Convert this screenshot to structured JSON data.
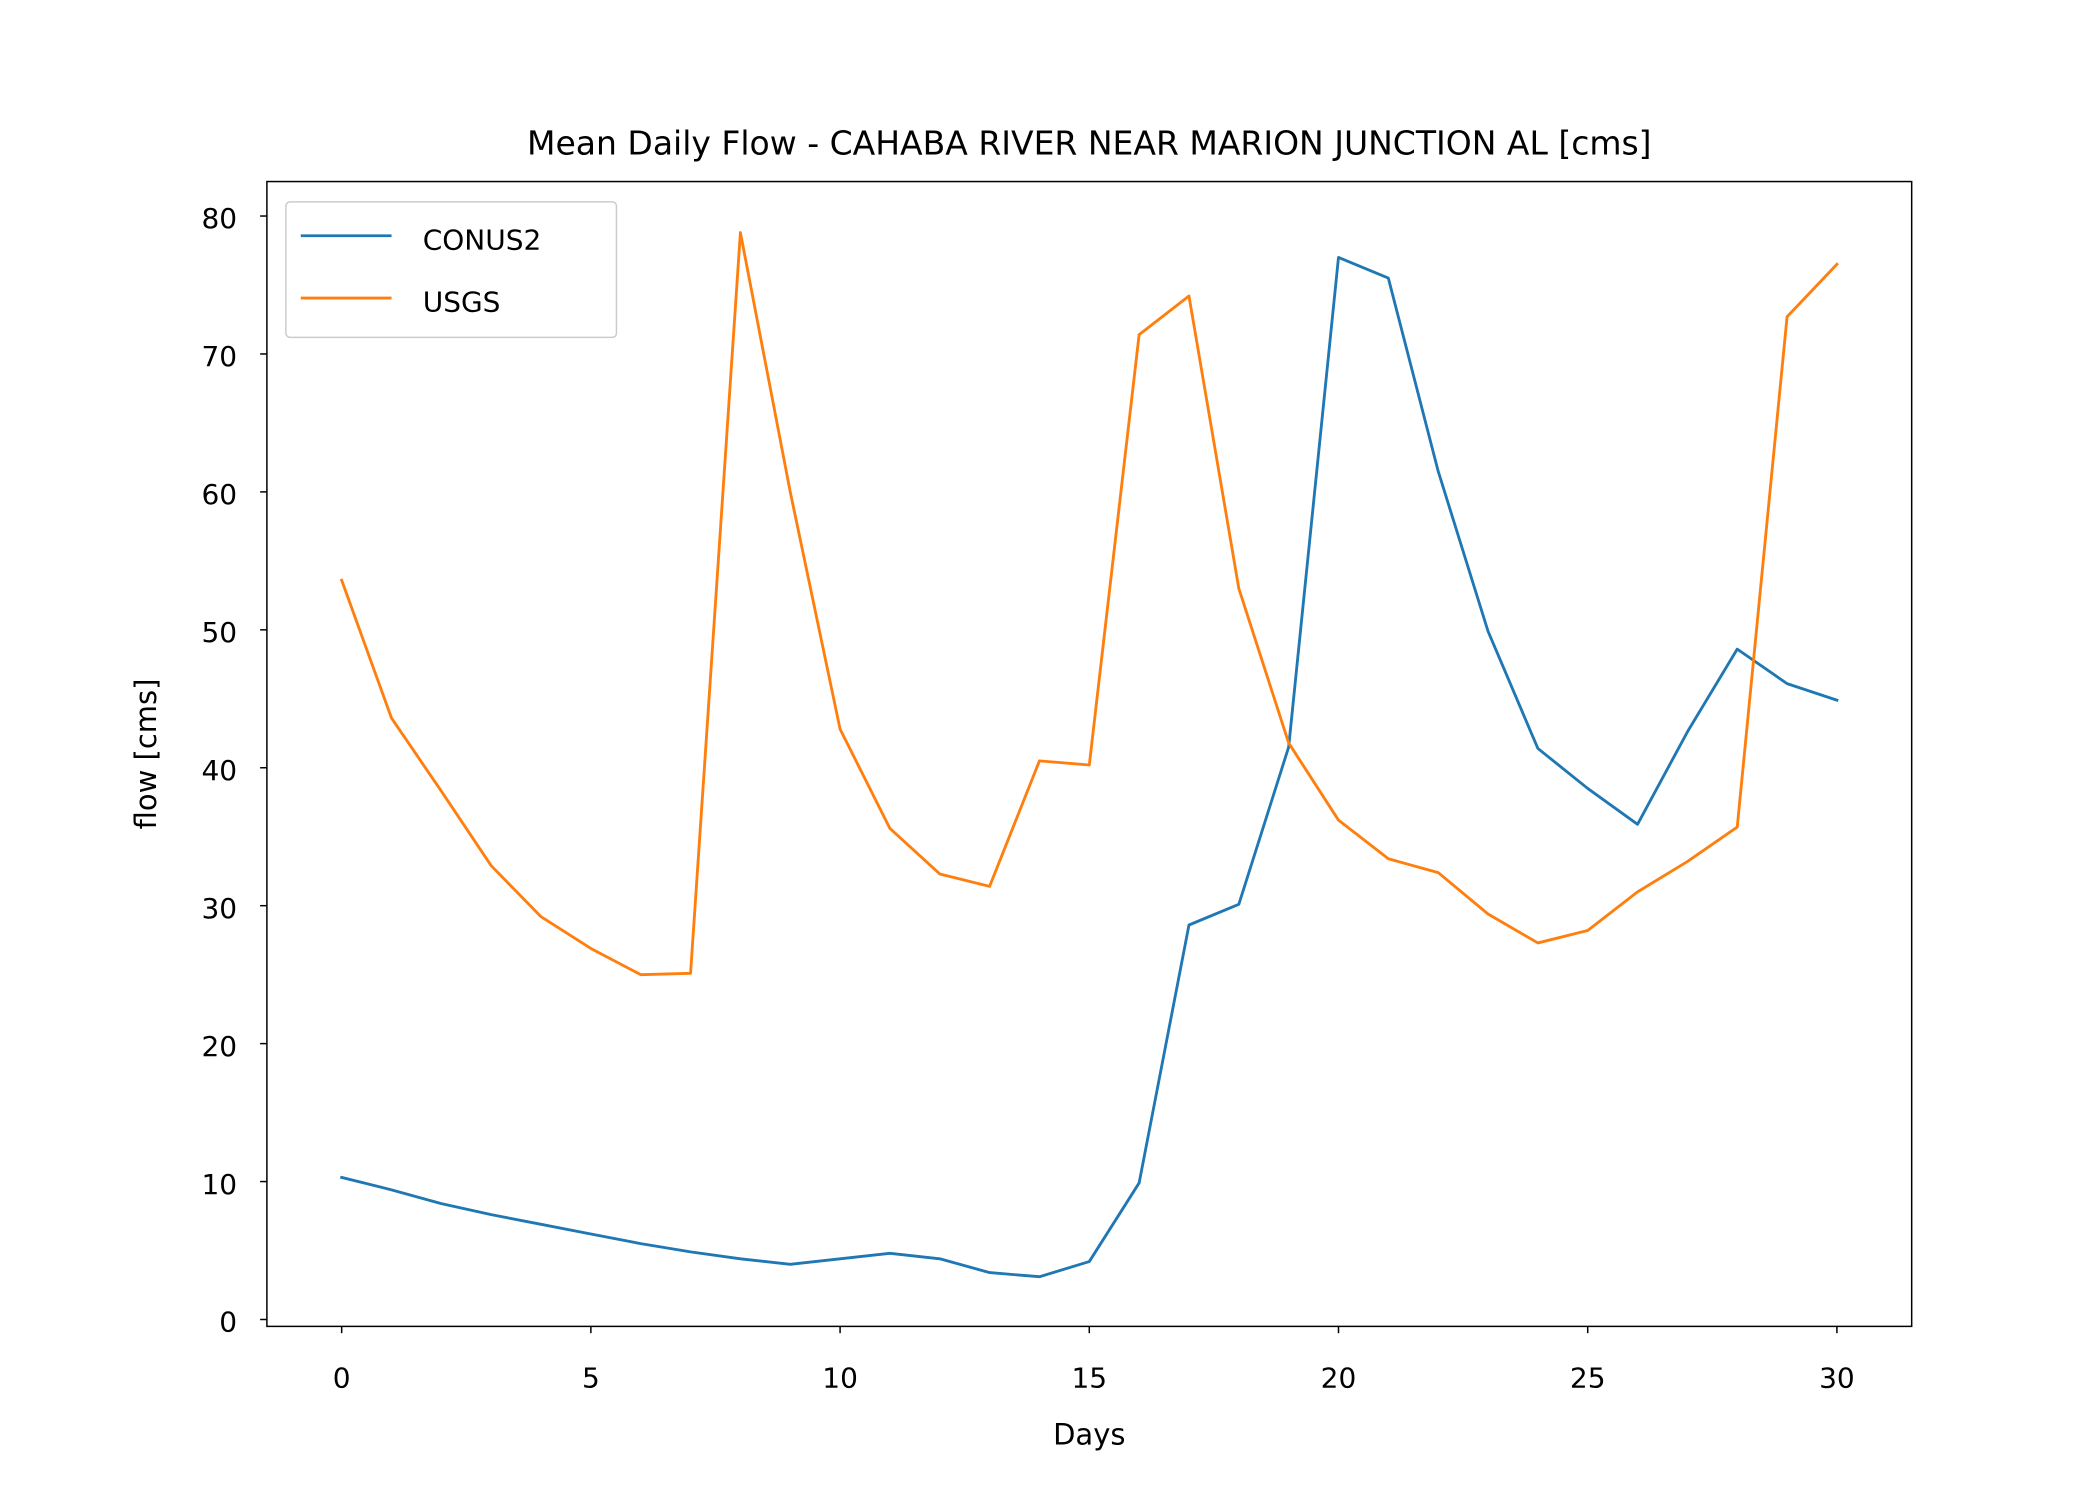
{
  "chart_data": {
    "type": "line",
    "title": "Mean Daily Flow - CAHABA RIVER NEAR MARION JUNCTION AL [cms]",
    "xlabel": "Days",
    "ylabel": "flow [cms]",
    "xlim": [
      -1.5,
      31.5
    ],
    "ylim": [
      -0.5,
      82.5
    ],
    "x_ticks": [
      0,
      5,
      10,
      15,
      20,
      25,
      30
    ],
    "y_ticks": [
      0,
      10,
      20,
      30,
      40,
      50,
      60,
      70,
      80
    ],
    "grid": false,
    "legend_position": "upper left",
    "x": [
      0,
      1,
      2,
      3,
      4,
      5,
      6,
      7,
      8,
      9,
      10,
      11,
      12,
      13,
      14,
      15,
      16,
      17,
      18,
      19,
      20,
      21,
      22,
      23,
      24,
      25,
      26,
      27,
      28,
      29,
      30
    ],
    "series": [
      {
        "name": "CONUS2",
        "color": "#1f77b4",
        "values": [
          10.3,
          9.4,
          8.4,
          7.6,
          6.9,
          6.2,
          5.5,
          4.9,
          4.4,
          4.0,
          4.4,
          4.8,
          4.4,
          3.4,
          3.1,
          4.2,
          9.9,
          28.6,
          30.1,
          41.5,
          77.0,
          75.5,
          61.5,
          49.9,
          41.4,
          38.5,
          35.9,
          42.6,
          48.6,
          46.1,
          44.9
        ]
      },
      {
        "name": "USGS",
        "color": "#ff7f0e",
        "values": [
          53.6,
          43.6,
          38.3,
          32.9,
          29.2,
          26.9,
          25.0,
          25.1,
          78.8,
          60.0,
          42.8,
          35.6,
          32.3,
          31.4,
          40.5,
          40.2,
          71.4,
          74.2,
          53.0,
          41.8,
          36.2,
          33.4,
          32.4,
          29.4,
          27.3,
          28.2,
          31.0,
          33.2,
          35.7,
          72.7,
          76.5
        ]
      }
    ]
  }
}
